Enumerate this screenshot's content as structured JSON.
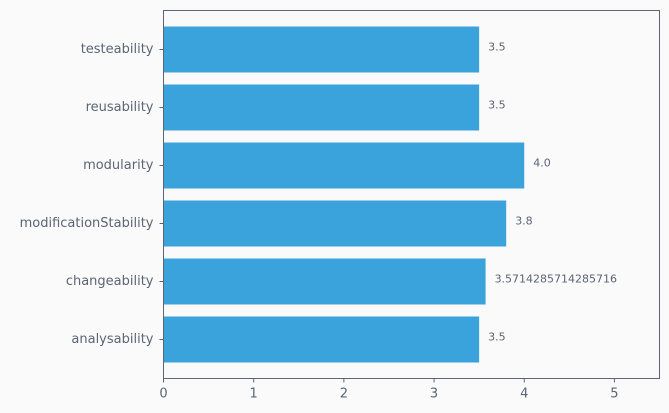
{
  "chart_data": {
    "type": "bar",
    "orientation": "horizontal",
    "categories": [
      "analysability",
      "changeability",
      "modificationStability",
      "modularity",
      "reusability",
      "testeability"
    ],
    "values": [
      3.5,
      3.5714285714285716,
      3.8,
      4.0,
      3.5,
      3.5
    ],
    "data_labels": [
      "3.5",
      "3.5714285714285716",
      "3.8",
      "4.0",
      "3.5",
      "3.5"
    ],
    "xlim": [
      0,
      5.5
    ],
    "xticks": [
      0,
      1,
      2,
      3,
      4,
      5
    ],
    "xtick_labels": [
      "0",
      "1",
      "2",
      "3",
      "4",
      "5"
    ],
    "grid": false,
    "colors": {
      "bar": "#3aa3db",
      "axis": "#5b6573",
      "background": "#fafafa"
    }
  }
}
